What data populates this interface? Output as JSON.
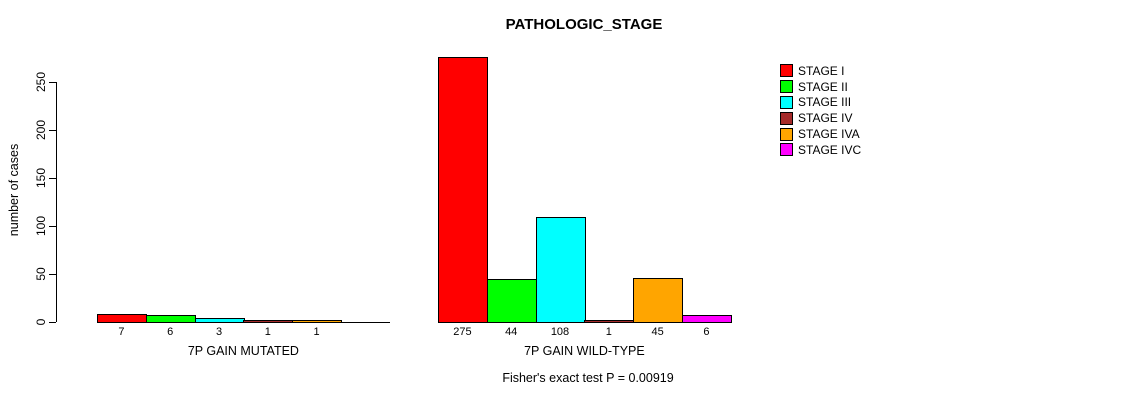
{
  "chart_data": {
    "type": "bar",
    "title": "PATHOLOGIC_STAGE",
    "ylabel": "number of cases",
    "yticks": [
      0,
      50,
      100,
      150,
      200,
      250
    ],
    "ylim": [
      0,
      250
    ],
    "grid": false,
    "legend_position": "right",
    "categories": [
      "7P GAIN MUTATED",
      "7P GAIN WILD-TYPE"
    ],
    "series": [
      {
        "name": "STAGE I",
        "color": "#FF0000",
        "values": [
          7,
          275
        ]
      },
      {
        "name": "STAGE II",
        "color": "#00FF00",
        "values": [
          6,
          44
        ]
      },
      {
        "name": "STAGE III",
        "color": "#00FFFF",
        "values": [
          3,
          108
        ]
      },
      {
        "name": "STAGE IV",
        "color": "#A52A2A",
        "values": [
          1,
          1
        ]
      },
      {
        "name": "STAGE IVA",
        "color": "#FFA500",
        "values": [
          1,
          45
        ]
      },
      {
        "name": "STAGE IVC",
        "color": "#FF00FF",
        "values": [
          null,
          6
        ]
      }
    ],
    "bar_value_labels": [
      [
        "7",
        "6",
        "3",
        "1",
        "1"
      ],
      [
        "275",
        "44",
        "108",
        "1",
        "45",
        "6"
      ]
    ],
    "annotation": "Fisher's exact test P = 0.00919"
  }
}
